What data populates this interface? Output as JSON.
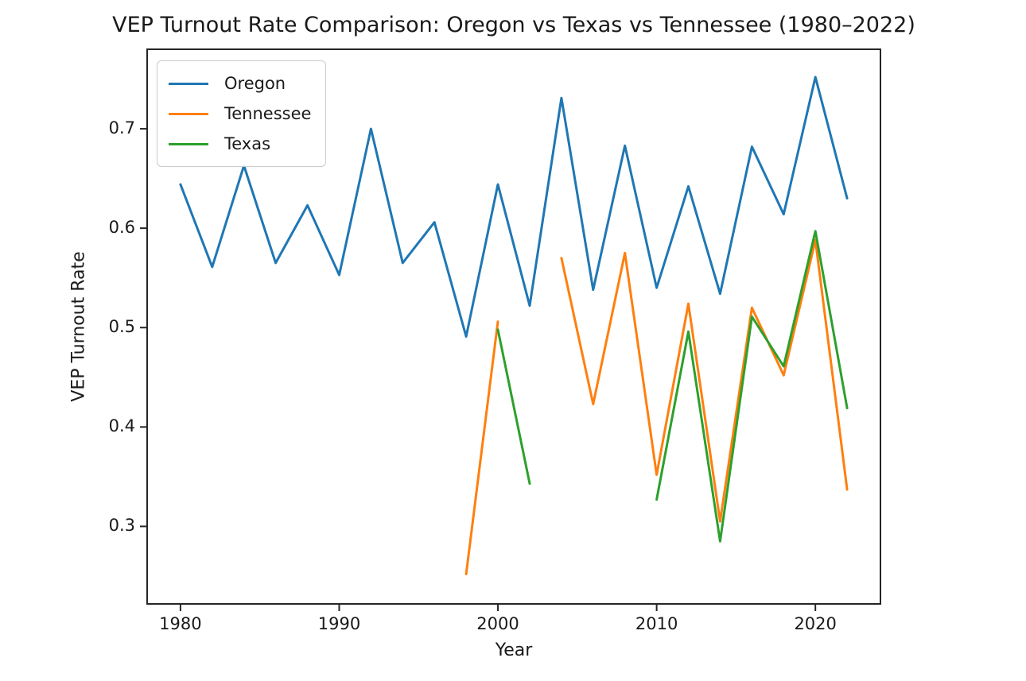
{
  "chart_data": {
    "type": "line",
    "title": "VEP Turnout Rate Comparison: Oregon vs Texas vs Tennessee (1980–2022)",
    "xlabel": "Year",
    "ylabel": "VEP Turnout Rate",
    "xlim": [
      1977.9,
      2024.1
    ],
    "ylim": [
      0.222,
      0.78
    ],
    "x_ticks": [
      1980,
      1990,
      2000,
      2010,
      2020
    ],
    "y_ticks": [
      0.3,
      0.4,
      0.5,
      0.6,
      0.7
    ],
    "grid": false,
    "legend_position": "upper left",
    "axis_color": "#262626",
    "series": [
      {
        "name": "Oregon",
        "color": "#1f77b4",
        "x": [
          1980,
          1982,
          1984,
          1986,
          1988,
          1990,
          1992,
          1994,
          1996,
          1998,
          2000,
          2002,
          2004,
          2006,
          2008,
          2010,
          2012,
          2014,
          2016,
          2018,
          2020,
          2022
        ],
        "y": [
          0.644,
          0.561,
          0.663,
          0.565,
          0.623,
          0.553,
          0.7,
          0.565,
          0.606,
          0.491,
          0.644,
          0.522,
          0.731,
          0.538,
          0.683,
          0.54,
          0.642,
          0.534,
          0.682,
          0.614,
          0.752,
          0.63
        ]
      },
      {
        "name": "Tennessee",
        "color": "#ff7f0e",
        "x": [
          1998,
          2000,
          2002,
          2004,
          2006,
          2008,
          2010,
          2012,
          2014,
          2016,
          2018,
          2020,
          2022
        ],
        "y": [
          0.252,
          0.506,
          null,
          0.57,
          0.423,
          0.575,
          0.352,
          0.524,
          0.305,
          0.52,
          0.452,
          0.588,
          0.337
        ]
      },
      {
        "name": "Texas",
        "color": "#2ca02c",
        "x": [
          2000,
          2002,
          2004,
          2006,
          2008,
          2010,
          2012,
          2014,
          2016,
          2018,
          2020,
          2022
        ],
        "y": [
          0.498,
          0.343,
          null,
          null,
          null,
          0.327,
          0.496,
          0.285,
          0.511,
          0.461,
          0.597,
          0.419
        ]
      }
    ]
  }
}
